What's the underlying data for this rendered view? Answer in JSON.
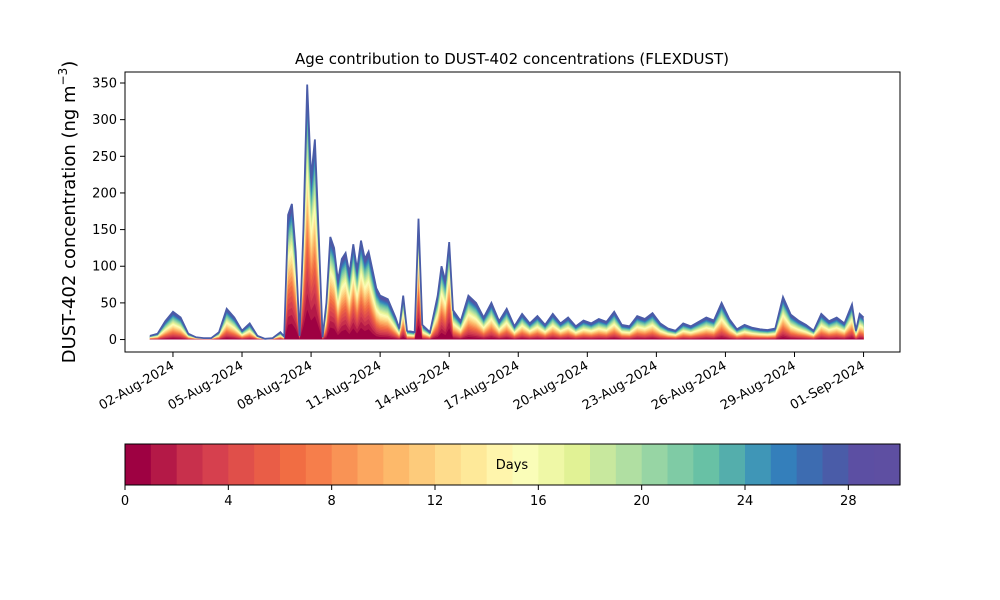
{
  "chart_data": [
    {
      "type": "area",
      "title": "Age contribution to DUST-402 concentrations (FLEXDUST)",
      "ylabel": "DUST-402 concentration (ng m",
      "ylabel_sup": "−3",
      "ylabel_tail": ")",
      "ylim": [
        -17,
        365
      ],
      "xlim": [
        "2024-07-30T22:00",
        "2024-09-02T14:00"
      ],
      "yticks": [
        0,
        50,
        100,
        150,
        200,
        250,
        300,
        350
      ],
      "xticks": [
        {
          "date": "2024-08-02",
          "label": "02-Aug-2024"
        },
        {
          "date": "2024-08-05",
          "label": "05-Aug-2024"
        },
        {
          "date": "2024-08-08",
          "label": "08-Aug-2024"
        },
        {
          "date": "2024-08-11",
          "label": "11-Aug-2024"
        },
        {
          "date": "2024-08-14",
          "label": "14-Aug-2024"
        },
        {
          "date": "2024-08-17",
          "label": "17-Aug-2024"
        },
        {
          "date": "2024-08-20",
          "label": "20-Aug-2024"
        },
        {
          "date": "2024-08-23",
          "label": "23-Aug-2024"
        },
        {
          "date": "2024-08-26",
          "label": "26-Aug-2024"
        },
        {
          "date": "2024-08-29",
          "label": "29-Aug-2024"
        },
        {
          "date": "2024-09-01",
          "label": "01-Sep-2024"
        }
      ],
      "stack_order": "age 0 days (bottom) to 30 days (top)",
      "total_series": [
        [
          "2024-08-01T00:00",
          5
        ],
        [
          "2024-08-01T08:00",
          8
        ],
        [
          "2024-08-01T16:00",
          25
        ],
        [
          "2024-08-02T00:00",
          38
        ],
        [
          "2024-08-02T08:00",
          30
        ],
        [
          "2024-08-02T16:00",
          8
        ],
        [
          "2024-08-03T00:00",
          3
        ],
        [
          "2024-08-03T08:00",
          2
        ],
        [
          "2024-08-03T16:00",
          2
        ],
        [
          "2024-08-04T00:00",
          10
        ],
        [
          "2024-08-04T08:00",
          42
        ],
        [
          "2024-08-04T16:00",
          30
        ],
        [
          "2024-08-05T00:00",
          12
        ],
        [
          "2024-08-05T08:00",
          22
        ],
        [
          "2024-08-05T16:00",
          5
        ],
        [
          "2024-08-06T00:00",
          1
        ],
        [
          "2024-08-06T08:00",
          2
        ],
        [
          "2024-08-06T16:00",
          10
        ],
        [
          "2024-08-06T20:00",
          4
        ],
        [
          "2024-08-07T00:00",
          170
        ],
        [
          "2024-08-07T04:00",
          185
        ],
        [
          "2024-08-07T08:00",
          120
        ],
        [
          "2024-08-07T12:00",
          5
        ],
        [
          "2024-08-07T16:00",
          150
        ],
        [
          "2024-08-07T20:00",
          348
        ],
        [
          "2024-08-08T00:00",
          220
        ],
        [
          "2024-08-08T04:00",
          273
        ],
        [
          "2024-08-08T08:00",
          140
        ],
        [
          "2024-08-08T12:00",
          3
        ],
        [
          "2024-08-08T16:00",
          50
        ],
        [
          "2024-08-08T20:00",
          140
        ],
        [
          "2024-08-09T00:00",
          125
        ],
        [
          "2024-08-09T04:00",
          80
        ],
        [
          "2024-08-09T08:00",
          110
        ],
        [
          "2024-08-09T12:00",
          118
        ],
        [
          "2024-08-09T16:00",
          90
        ],
        [
          "2024-08-09T20:00",
          130
        ],
        [
          "2024-08-10T00:00",
          95
        ],
        [
          "2024-08-10T04:00",
          135
        ],
        [
          "2024-08-10T08:00",
          110
        ],
        [
          "2024-08-10T12:00",
          120
        ],
        [
          "2024-08-10T16:00",
          95
        ],
        [
          "2024-08-10T20:00",
          70
        ],
        [
          "2024-08-11T00:00",
          60
        ],
        [
          "2024-08-11T08:00",
          55
        ],
        [
          "2024-08-11T16:00",
          30
        ],
        [
          "2024-08-11T20:00",
          15
        ],
        [
          "2024-08-12T00:00",
          60
        ],
        [
          "2024-08-12T04:00",
          12
        ],
        [
          "2024-08-12T12:00",
          10
        ],
        [
          "2024-08-12T16:00",
          165
        ],
        [
          "2024-08-12T20:00",
          20
        ],
        [
          "2024-08-13T04:00",
          10
        ],
        [
          "2024-08-13T12:00",
          60
        ],
        [
          "2024-08-13T16:00",
          100
        ],
        [
          "2024-08-13T20:00",
          80
        ],
        [
          "2024-08-14T00:00",
          133
        ],
        [
          "2024-08-14T04:00",
          40
        ],
        [
          "2024-08-14T12:00",
          25
        ],
        [
          "2024-08-14T20:00",
          60
        ],
        [
          "2024-08-15T04:00",
          50
        ],
        [
          "2024-08-15T12:00",
          30
        ],
        [
          "2024-08-15T20:00",
          50
        ],
        [
          "2024-08-16T04:00",
          25
        ],
        [
          "2024-08-16T12:00",
          42
        ],
        [
          "2024-08-16T20:00",
          18
        ],
        [
          "2024-08-17T04:00",
          35
        ],
        [
          "2024-08-17T12:00",
          22
        ],
        [
          "2024-08-17T20:00",
          32
        ],
        [
          "2024-08-18T04:00",
          20
        ],
        [
          "2024-08-18T12:00",
          35
        ],
        [
          "2024-08-18T20:00",
          22
        ],
        [
          "2024-08-19T04:00",
          30
        ],
        [
          "2024-08-19T12:00",
          18
        ],
        [
          "2024-08-19T20:00",
          26
        ],
        [
          "2024-08-20T04:00",
          22
        ],
        [
          "2024-08-20T12:00",
          28
        ],
        [
          "2024-08-20T20:00",
          24
        ],
        [
          "2024-08-21T04:00",
          38
        ],
        [
          "2024-08-21T12:00",
          20
        ],
        [
          "2024-08-21T20:00",
          18
        ],
        [
          "2024-08-22T04:00",
          32
        ],
        [
          "2024-08-22T12:00",
          28
        ],
        [
          "2024-08-22T20:00",
          36
        ],
        [
          "2024-08-23T04:00",
          22
        ],
        [
          "2024-08-23T12:00",
          15
        ],
        [
          "2024-08-23T20:00",
          12
        ],
        [
          "2024-08-24T04:00",
          22
        ],
        [
          "2024-08-24T12:00",
          18
        ],
        [
          "2024-08-24T20:00",
          24
        ],
        [
          "2024-08-25T04:00",
          30
        ],
        [
          "2024-08-25T12:00",
          26
        ],
        [
          "2024-08-25T20:00",
          50
        ],
        [
          "2024-08-26T04:00",
          28
        ],
        [
          "2024-08-26T12:00",
          14
        ],
        [
          "2024-08-26T20:00",
          20
        ],
        [
          "2024-08-27T04:00",
          16
        ],
        [
          "2024-08-27T12:00",
          14
        ],
        [
          "2024-08-27T20:00",
          13
        ],
        [
          "2024-08-28T04:00",
          15
        ],
        [
          "2024-08-28T12:00",
          58
        ],
        [
          "2024-08-28T20:00",
          34
        ],
        [
          "2024-08-29T04:00",
          26
        ],
        [
          "2024-08-29T12:00",
          20
        ],
        [
          "2024-08-29T20:00",
          12
        ],
        [
          "2024-08-30T04:00",
          35
        ],
        [
          "2024-08-30T12:00",
          25
        ],
        [
          "2024-08-30T20:00",
          30
        ],
        [
          "2024-08-31T04:00",
          22
        ],
        [
          "2024-08-31T12:00",
          48
        ],
        [
          "2024-08-31T16:00",
          12
        ],
        [
          "2024-08-31T20:00",
          35
        ],
        [
          "2024-09-01T00:00",
          30
        ]
      ],
      "colorbar": {
        "label": "Days",
        "range": [
          0,
          30
        ],
        "bins": 30,
        "ticks": [
          0,
          4,
          8,
          12,
          16,
          20,
          24,
          28
        ],
        "colormap": "Spectral",
        "colors": [
          "#9e0142",
          "#b41947",
          "#c8304c",
          "#d6404e",
          "#e04f4a",
          "#e95d47",
          "#f16d43",
          "#f67e4b",
          "#f99355",
          "#fca760",
          "#fdb96a",
          "#fdcb7b",
          "#fedc8c",
          "#fee999",
          "#fff5ac",
          "#fafdb8",
          "#eff8a6",
          "#e1f295",
          "#c8e89e",
          "#b0dfa2",
          "#97d5a4",
          "#7fcba5",
          "#68c1a5",
          "#54aeac",
          "#3f96b7",
          "#347fbb",
          "#3d6cb1",
          "#4a5ca8",
          "#5c4fa3",
          "#5e4fa2"
        ]
      }
    }
  ]
}
